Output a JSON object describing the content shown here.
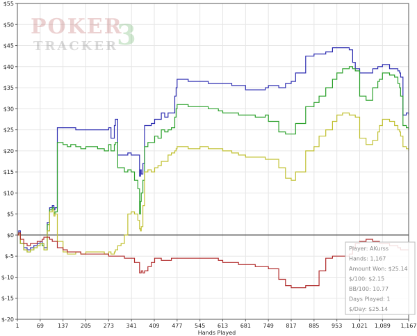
{
  "watermark": {
    "line1": "POKER",
    "line2": "TRACKER",
    "mark": "3"
  },
  "stats_box": {
    "lines": [
      "Player: AKurss",
      "Hands: 1,167",
      "Amount Won: $25.14",
      "$/100: $2.15",
      "BB/100: 10.77",
      "Days Played: 1",
      "$/Day: $25.14"
    ]
  },
  "chart_data": {
    "type": "line",
    "xlabel": "Hands Played",
    "ylabel": "",
    "title": "",
    "xlim": [
      1,
      1167
    ],
    "ylim": [
      -20,
      55
    ],
    "xticks": [
      1,
      69,
      137,
      205,
      273,
      341,
      409,
      477,
      545,
      613,
      681,
      749,
      817,
      885,
      953,
      1021,
      1089,
      1167
    ],
    "xtick_labels": [
      "1",
      "69",
      "137",
      "205",
      "273",
      "341",
      "409",
      "477",
      "545",
      "613",
      "681",
      "749",
      "817",
      "885",
      "953",
      "1,021",
      "1,089",
      "1,167"
    ],
    "yticks": [
      -20,
      -15,
      -10,
      -5,
      0,
      5,
      10,
      15,
      20,
      25,
      30,
      35,
      40,
      45,
      50,
      55
    ],
    "ytick_labels": [
      "$-20",
      "$-15",
      "$-10",
      "$-5",
      "$0",
      "$5",
      "$10",
      "$15",
      "$20",
      "$25",
      "$30",
      "$35",
      "$40",
      "$45",
      "$50",
      "$55"
    ],
    "grid": true,
    "series": [
      {
        "color": "#2b2bb0",
        "x": [
          1,
          5,
          10,
          20,
          30,
          40,
          50,
          60,
          69,
          75,
          80,
          90,
          97,
          105,
          110,
          113,
          120,
          137,
          150,
          160,
          175,
          190,
          205,
          220,
          240,
          260,
          273,
          280,
          290,
          293,
          300,
          310,
          320,
          330,
          340,
          350,
          360,
          365,
          368,
          370,
          375,
          380,
          390,
          400,
          410,
          420,
          430,
          440,
          450,
          460,
          470,
          474,
          477,
          490,
          510,
          530,
          545,
          570,
          600,
          613,
          640,
          660,
          681,
          710,
          740,
          749,
          780,
          800,
          817,
          830,
          860,
          885,
          900,
          920,
          940,
          953,
          970,
          990,
          1000,
          1008,
          1021,
          1040,
          1060,
          1075,
          1080,
          1089,
          1110,
          1125,
          1135,
          1140,
          1143,
          1150,
          1160,
          1167
        ],
        "y": [
          0,
          1,
          -2,
          -3,
          -3.5,
          -3,
          -2.5,
          -2,
          -1.5,
          -2,
          -3,
          3,
          6.5,
          7,
          6,
          6.5,
          25.5,
          25.5,
          25.5,
          25.5,
          25,
          25,
          25,
          25,
          25,
          25,
          25.5,
          23,
          26,
          27.5,
          19,
          19,
          19,
          19.5,
          19,
          19,
          19,
          14,
          15.5,
          14.5,
          17,
          26,
          26,
          26.5,
          27.5,
          27.5,
          29,
          28,
          29,
          29,
          33,
          35,
          37,
          37,
          36.5,
          36.5,
          36.5,
          36,
          36,
          36,
          35.5,
          35.5,
          34.5,
          34.5,
          35,
          35.5,
          35,
          36,
          36.5,
          38.5,
          42.5,
          43,
          43,
          43.5,
          44.5,
          44.5,
          44.5,
          44,
          41,
          39.5,
          38.5,
          38.5,
          39.5,
          40,
          40,
          40.5,
          39.5,
          39.5,
          39,
          38.5,
          37.5,
          28.5,
          29,
          28.5
        ]
      },
      {
        "color": "#2aa02a",
        "x": [
          1,
          5,
          10,
          20,
          30,
          40,
          50,
          60,
          69,
          75,
          80,
          90,
          97,
          105,
          110,
          113,
          120,
          137,
          150,
          160,
          175,
          190,
          205,
          220,
          240,
          260,
          273,
          280,
          290,
          293,
          300,
          310,
          320,
          330,
          340,
          350,
          360,
          365,
          368,
          370,
          375,
          380,
          390,
          400,
          410,
          420,
          430,
          440,
          450,
          460,
          470,
          474,
          477,
          490,
          510,
          530,
          545,
          570,
          600,
          613,
          640,
          660,
          681,
          710,
          740,
          749,
          780,
          800,
          817,
          830,
          860,
          885,
          900,
          920,
          940,
          953,
          970,
          990,
          1000,
          1008,
          1021,
          1040,
          1060,
          1075,
          1080,
          1089,
          1110,
          1125,
          1135,
          1140,
          1143,
          1150,
          1160,
          1167
        ],
        "y": [
          0,
          0.5,
          -2,
          -3.5,
          -4,
          -3.5,
          -3,
          -2.5,
          -2,
          -2.5,
          -3.5,
          2.5,
          6,
          6.5,
          5,
          5.5,
          22,
          21.5,
          21,
          21.5,
          21,
          20.5,
          21,
          21,
          20.5,
          20,
          21.5,
          20,
          21.5,
          22,
          16,
          16,
          15,
          15.5,
          15,
          13,
          11,
          5,
          8,
          10,
          13,
          21,
          22,
          22,
          23.5,
          23,
          25,
          24.5,
          25,
          25.5,
          28,
          30,
          31,
          31,
          30.5,
          30.5,
          30.5,
          30,
          29.5,
          29,
          29,
          28.5,
          28.5,
          28,
          28.5,
          27,
          24.5,
          24,
          24,
          26.5,
          30.5,
          31.5,
          33,
          35,
          37,
          38.5,
          39.5,
          40,
          39.5,
          39,
          33,
          32,
          35,
          36.5,
          37,
          38.5,
          38,
          37.5,
          36,
          35,
          33,
          26,
          25.5,
          25
        ]
      },
      {
        "color": "#c0c030",
        "x": [
          1,
          5,
          10,
          20,
          30,
          40,
          50,
          60,
          69,
          75,
          80,
          90,
          97,
          105,
          110,
          113,
          120,
          137,
          150,
          160,
          175,
          190,
          205,
          220,
          240,
          260,
          273,
          280,
          290,
          293,
          300,
          310,
          320,
          330,
          340,
          350,
          360,
          365,
          368,
          370,
          375,
          380,
          390,
          400,
          410,
          420,
          430,
          440,
          450,
          460,
          470,
          474,
          477,
          490,
          510,
          530,
          545,
          570,
          600,
          613,
          640,
          660,
          681,
          710,
          740,
          749,
          780,
          800,
          817,
          830,
          860,
          885,
          900,
          920,
          940,
          953,
          970,
          990,
          1000,
          1008,
          1021,
          1040,
          1060,
          1075,
          1080,
          1089,
          1110,
          1125,
          1135,
          1140,
          1143,
          1150,
          1160,
          1167
        ],
        "y": [
          0,
          0,
          -2,
          -3.5,
          -4,
          -3.5,
          -3,
          -2.5,
          -2,
          -2,
          -3.5,
          1,
          5.5,
          6,
          4.5,
          5,
          -1.5,
          -4,
          -4.5,
          -4.5,
          -4,
          -4.5,
          -4,
          -4,
          -4,
          -4.5,
          -4,
          -4.5,
          -4,
          -3.5,
          -2.5,
          -2,
          0,
          5,
          5.5,
          5,
          3.5,
          1.5,
          1,
          2,
          7,
          15,
          15.5,
          15,
          16,
          16.5,
          17.5,
          17.5,
          19,
          19.5,
          20,
          20.5,
          21,
          21,
          20.5,
          20.5,
          21,
          20.5,
          20.5,
          20,
          19.5,
          19,
          18.5,
          18.5,
          18,
          18,
          16,
          13.5,
          13,
          15,
          20,
          21,
          23.5,
          25,
          27,
          28.5,
          29,
          28.5,
          28.5,
          28,
          23,
          21.5,
          22.5,
          24.5,
          26,
          27.5,
          27,
          26,
          25,
          24.5,
          23.5,
          21,
          20.5,
          20
        ]
      },
      {
        "color": "#b02a2a",
        "x": [
          1,
          5,
          10,
          20,
          30,
          40,
          50,
          60,
          69,
          75,
          80,
          90,
          97,
          105,
          110,
          113,
          120,
          137,
          150,
          160,
          175,
          190,
          205,
          220,
          240,
          260,
          273,
          280,
          290,
          293,
          300,
          310,
          320,
          330,
          340,
          350,
          360,
          365,
          368,
          370,
          375,
          380,
          390,
          400,
          410,
          420,
          430,
          440,
          450,
          460,
          470,
          474,
          477,
          490,
          510,
          530,
          545,
          570,
          600,
          613,
          640,
          660,
          681,
          710,
          740,
          749,
          780,
          800,
          817,
          830,
          860,
          885,
          900,
          920,
          940,
          953,
          970,
          990,
          1000,
          1008,
          1021,
          1040,
          1060,
          1075,
          1080,
          1089,
          1110,
          1125,
          1135,
          1140,
          1143,
          1150,
          1160,
          1167
        ],
        "y": [
          0,
          0.5,
          -1,
          -2,
          -2.5,
          -2,
          -2,
          -1.5,
          -1.5,
          -1,
          -0.5,
          -0.5,
          -1,
          -1.5,
          -1.5,
          -1.5,
          -3,
          -3.5,
          -4,
          -4,
          -4,
          -4.5,
          -4.5,
          -4.5,
          -4.5,
          -4.5,
          -5,
          -5,
          -5,
          -5,
          -5,
          -5,
          -5.5,
          -5.5,
          -5.5,
          -6.5,
          -6.5,
          -9,
          -9,
          -8.5,
          -9,
          -8.5,
          -7.5,
          -6.5,
          -5.5,
          -5.5,
          -6,
          -6,
          -6,
          -5.5,
          -5.5,
          -5.5,
          -5.5,
          -5.5,
          -5.5,
          -5.5,
          -5.5,
          -5.5,
          -6,
          -6.5,
          -6.5,
          -7,
          -7,
          -7.5,
          -7.5,
          -8,
          -10.5,
          -12,
          -12.5,
          -12.5,
          -12,
          -12,
          -8.5,
          -5.5,
          -5,
          -5,
          -5,
          -4.5,
          -3,
          -2,
          -1.5,
          -1,
          -1.5,
          -1.5,
          -2,
          -2,
          -2.5,
          -2.5,
          -3,
          -3,
          -3.5,
          -3.5,
          -3.5,
          -3.5
        ]
      }
    ]
  }
}
